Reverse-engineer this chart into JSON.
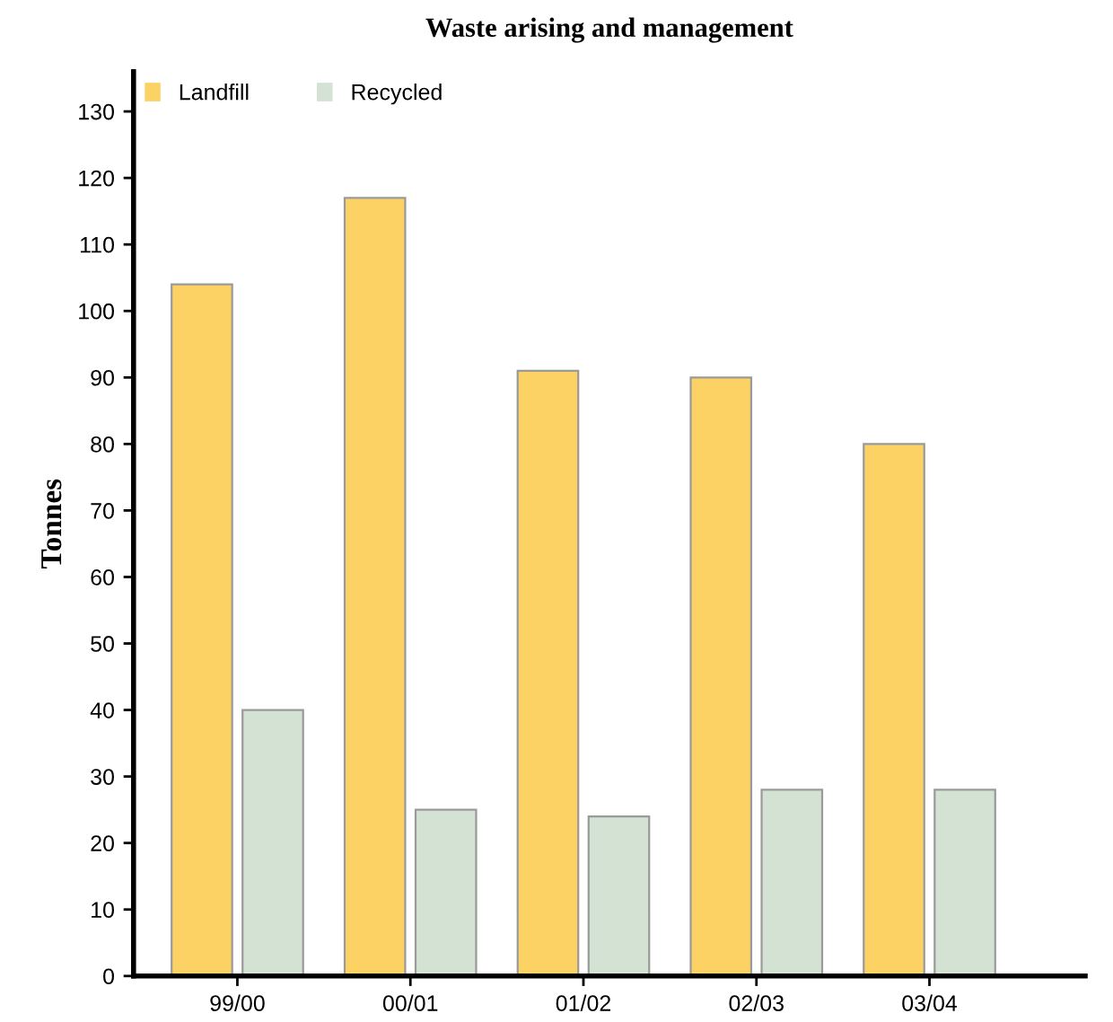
{
  "chart_data": {
    "type": "bar",
    "title": "Waste arising and management",
    "ylabel": "Tonnes",
    "categories": [
      "99/00",
      "00/01",
      "01/02",
      "02/03",
      "03/04"
    ],
    "series": [
      {
        "name": "Landfill",
        "color": "#fcd265",
        "values": [
          104,
          117,
          91,
          90,
          80
        ]
      },
      {
        "name": "Recycled",
        "color": "#d4e2d4",
        "values": [
          40,
          25,
          24,
          28,
          28
        ]
      }
    ],
    "ylim": [
      0,
      136
    ],
    "yticks": [
      0,
      10,
      20,
      30,
      40,
      50,
      60,
      70,
      80,
      90,
      100,
      110,
      120,
      130
    ],
    "grid": false,
    "legend": "top left"
  }
}
